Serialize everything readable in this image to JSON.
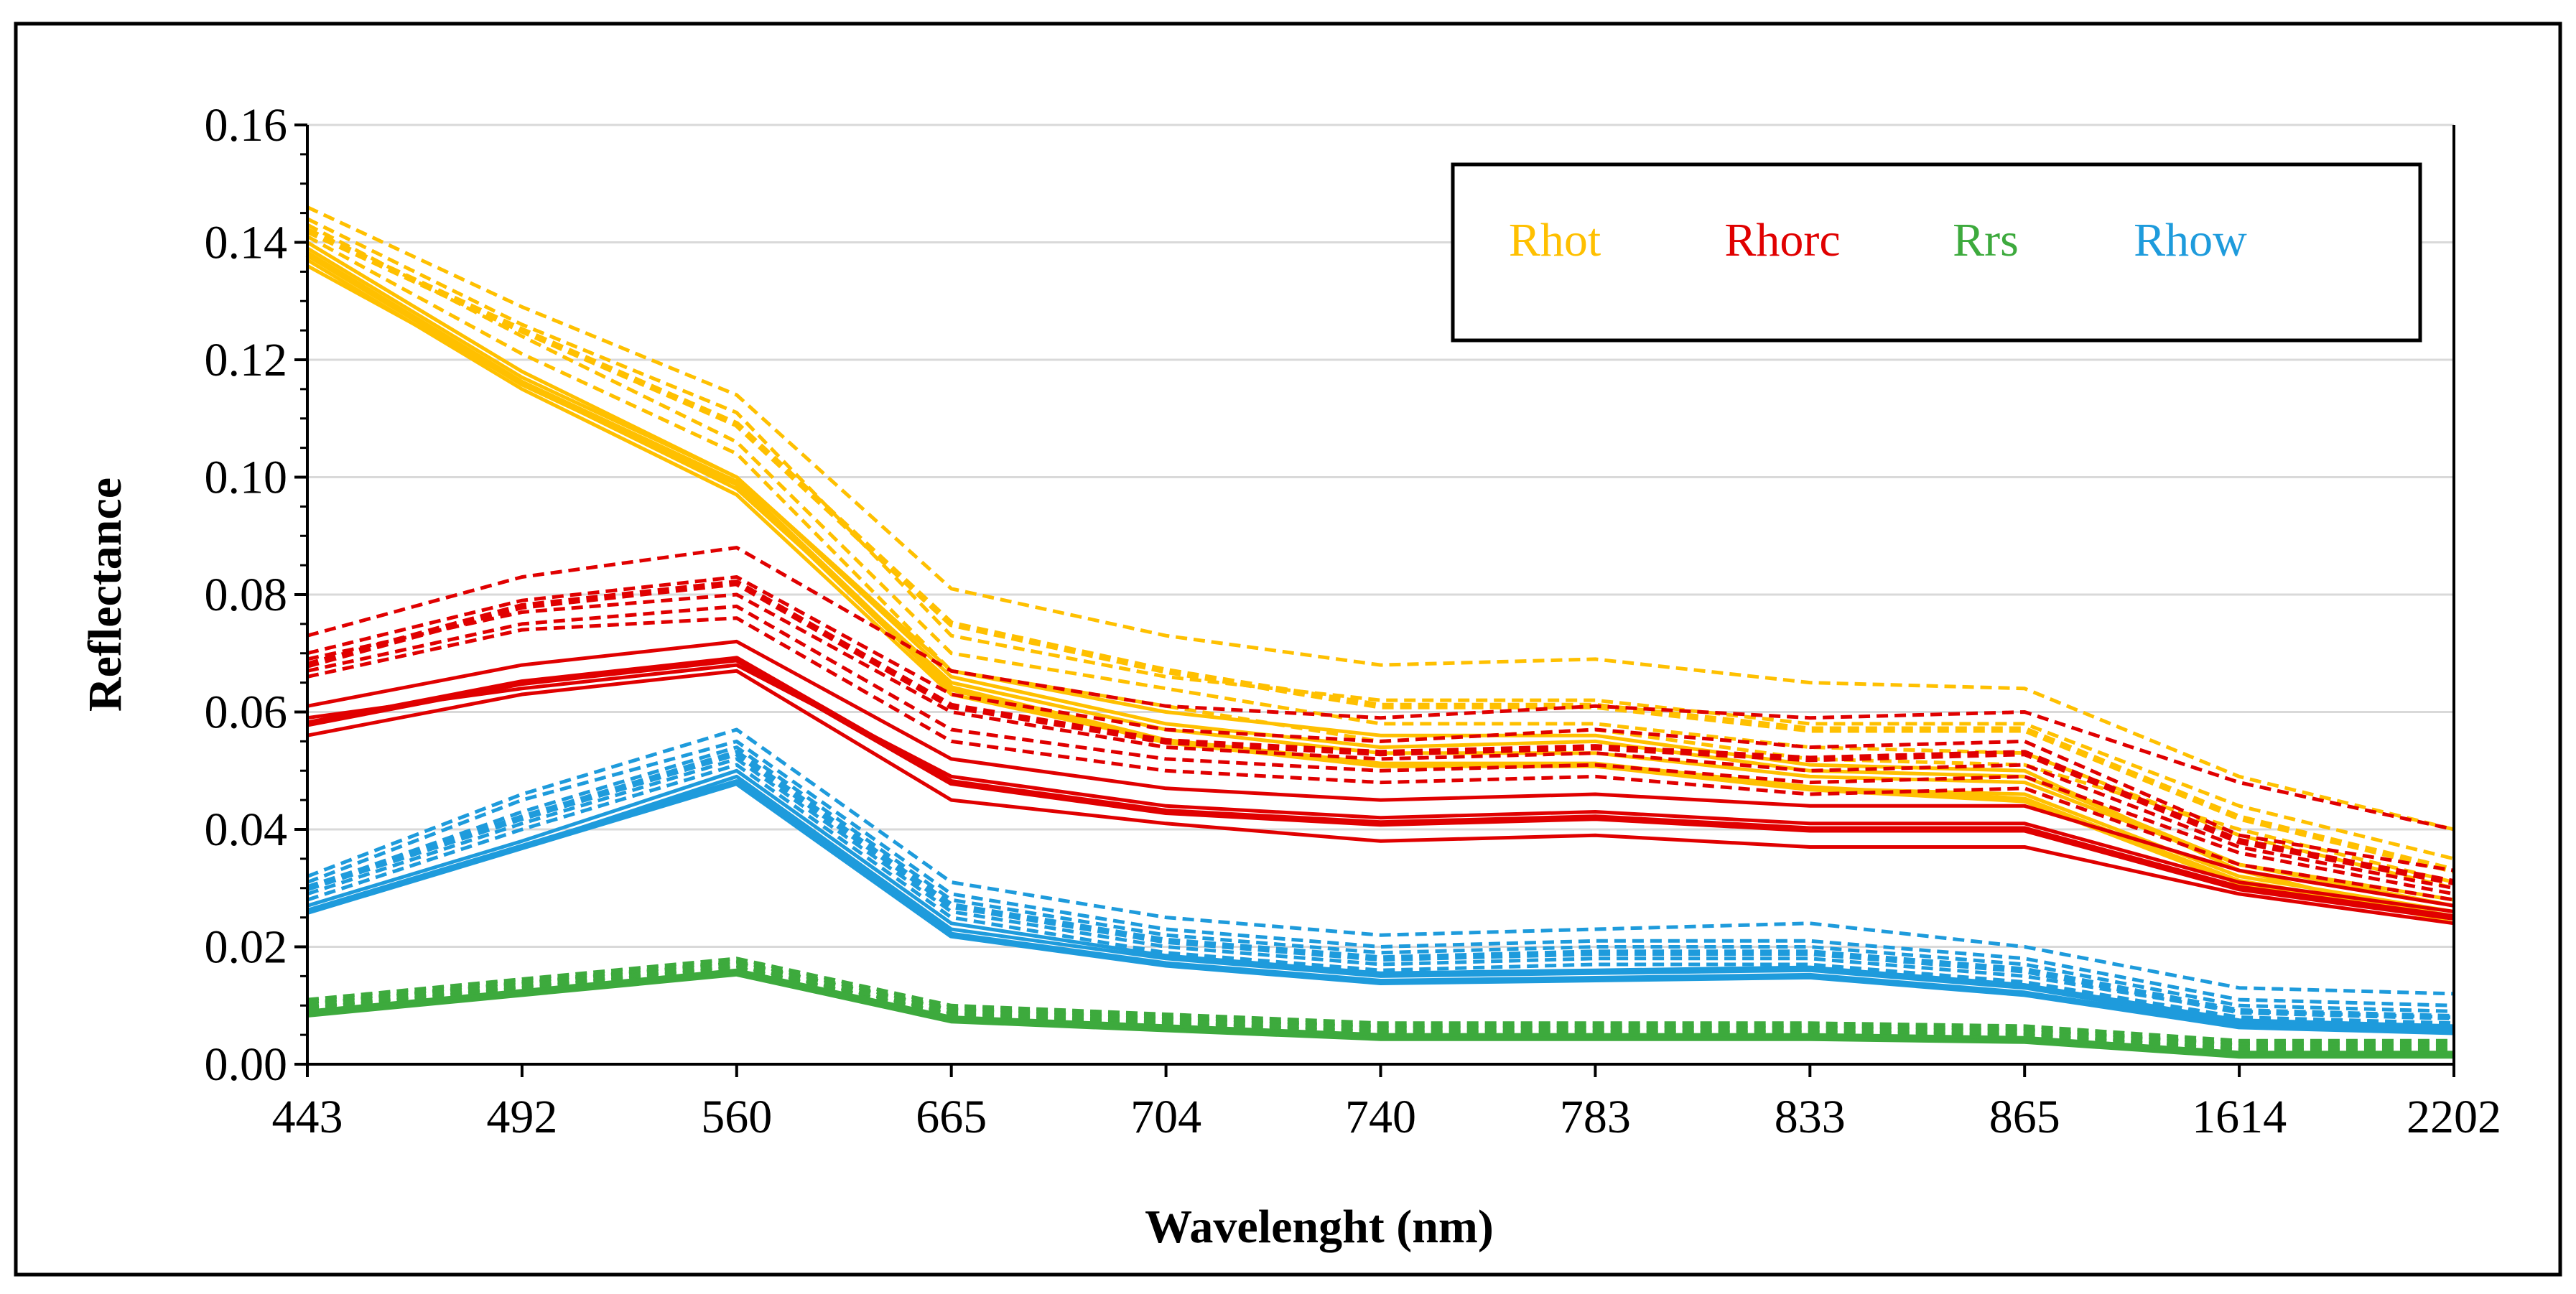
{
  "chart_data": {
    "type": "line",
    "xlabel": "Wavelenght (nm)",
    "ylabel": "Reflectance",
    "categories": [
      "443",
      "492",
      "560",
      "665",
      "704",
      "740",
      "783",
      "833",
      "865",
      "1614",
      "2202"
    ],
    "ylim": [
      0,
      0.16
    ],
    "yticks": [
      "0.00",
      "0.02",
      "0.04",
      "0.06",
      "0.08",
      "0.10",
      "0.12",
      "0.14",
      "0.16"
    ],
    "grid": "horizontal",
    "legend_position": "top-right",
    "legend": [
      {
        "label": "Rhot",
        "color": "#FFC000"
      },
      {
        "label": "Rhorc",
        "color": "#E00000"
      },
      {
        "label": "Rrs",
        "color": "#3DAA3D"
      },
      {
        "label": "Rhow",
        "color": "#1E9BDC"
      }
    ],
    "series": [
      {
        "group": "Rhot",
        "color": "#FFC000",
        "style": "solid",
        "width": 5,
        "values": [
          0.136,
          0.116,
          0.098,
          0.065,
          0.057,
          0.053,
          0.053,
          0.049,
          0.048,
          0.034,
          0.028
        ]
      },
      {
        "group": "Rhot",
        "color": "#FFC000",
        "style": "solid",
        "width": 5,
        "values": [
          0.137,
          0.115,
          0.097,
          0.063,
          0.055,
          0.051,
          0.051,
          0.047,
          0.046,
          0.032,
          0.026
        ]
      },
      {
        "group": "Rhot",
        "color": "#FFC000",
        "style": "solid",
        "width": 9,
        "values": [
          0.138,
          0.116,
          0.099,
          0.064,
          0.055,
          0.051,
          0.051,
          0.047,
          0.045,
          0.031,
          0.025
        ]
      },
      {
        "group": "Rhot",
        "color": "#FFC000",
        "style": "solid",
        "width": 5,
        "values": [
          0.139,
          0.117,
          0.1,
          0.066,
          0.058,
          0.054,
          0.055,
          0.05,
          0.049,
          0.034,
          0.027
        ]
      },
      {
        "group": "Rhot",
        "color": "#FFC000",
        "style": "solid",
        "width": 5,
        "values": [
          0.14,
          0.118,
          0.1,
          0.067,
          0.06,
          0.056,
          0.056,
          0.051,
          0.05,
          0.033,
          0.024
        ]
      },
      {
        "group": "Rhot",
        "color": "#FFC000",
        "style": "dashed",
        "width": 5,
        "values": [
          0.141,
          0.121,
          0.104,
          0.067,
          0.061,
          0.055,
          0.057,
          0.052,
          0.051,
          0.04,
          0.031
        ]
      },
      {
        "group": "Rhot",
        "color": "#FFC000",
        "style": "dashed",
        "width": 9,
        "values": [
          0.142,
          0.125,
          0.109,
          0.075,
          0.067,
          0.061,
          0.061,
          0.057,
          0.057,
          0.042,
          0.033
        ]
      },
      {
        "group": "Rhot",
        "color": "#FFC000",
        "style": "dashed",
        "width": 5,
        "values": [
          0.143,
          0.124,
          0.106,
          0.07,
          0.064,
          0.058,
          0.058,
          0.054,
          0.053,
          0.039,
          0.03
        ]
      },
      {
        "group": "Rhot",
        "color": "#FFC000",
        "style": "dashed",
        "width": 5,
        "values": [
          0.144,
          0.126,
          0.111,
          0.073,
          0.066,
          0.062,
          0.062,
          0.058,
          0.058,
          0.044,
          0.035
        ]
      },
      {
        "group": "Rhot",
        "color": "#FFC000",
        "style": "dashed",
        "width": 5,
        "values": [
          0.146,
          0.129,
          0.114,
          0.081,
          0.073,
          0.068,
          0.069,
          0.065,
          0.064,
          0.049,
          0.04
        ]
      },
      {
        "group": "Rhorc",
        "color": "#E00000",
        "style": "solid",
        "width": 5,
        "values": [
          0.056,
          0.063,
          0.067,
          0.045,
          0.041,
          0.038,
          0.039,
          0.037,
          0.037,
          0.029,
          0.024
        ]
      },
      {
        "group": "Rhorc",
        "color": "#E00000",
        "style": "solid",
        "width": 9,
        "values": [
          0.058,
          0.065,
          0.069,
          0.048,
          0.043,
          0.041,
          0.042,
          0.04,
          0.04,
          0.03,
          0.025
        ]
      },
      {
        "group": "Rhorc",
        "color": "#E00000",
        "style": "solid",
        "width": 5,
        "values": [
          0.059,
          0.064,
          0.068,
          0.049,
          0.044,
          0.042,
          0.043,
          0.041,
          0.041,
          0.031,
          0.026
        ]
      },
      {
        "group": "Rhorc",
        "color": "#E00000",
        "style": "solid",
        "width": 5,
        "values": [
          0.061,
          0.068,
          0.072,
          0.052,
          0.047,
          0.045,
          0.046,
          0.044,
          0.044,
          0.033,
          0.027
        ]
      },
      {
        "group": "Rhorc",
        "color": "#E00000",
        "style": "dashed",
        "width": 5,
        "values": [
          0.066,
          0.074,
          0.076,
          0.055,
          0.05,
          0.048,
          0.049,
          0.046,
          0.047,
          0.034,
          0.028
        ]
      },
      {
        "group": "Rhorc",
        "color": "#E00000",
        "style": "dashed",
        "width": 5,
        "values": [
          0.067,
          0.075,
          0.078,
          0.057,
          0.052,
          0.05,
          0.051,
          0.048,
          0.049,
          0.036,
          0.029
        ]
      },
      {
        "group": "Rhorc",
        "color": "#E00000",
        "style": "dashed",
        "width": 5,
        "values": [
          0.069,
          0.077,
          0.08,
          0.06,
          0.054,
          0.052,
          0.053,
          0.05,
          0.051,
          0.037,
          0.03
        ]
      },
      {
        "group": "Rhorc",
        "color": "#E00000",
        "style": "dashed",
        "width": 9,
        "values": [
          0.068,
          0.078,
          0.082,
          0.061,
          0.055,
          0.053,
          0.054,
          0.052,
          0.053,
          0.038,
          0.031
        ]
      },
      {
        "group": "Rhorc",
        "color": "#E00000",
        "style": "dashed",
        "width": 5,
        "values": [
          0.07,
          0.079,
          0.083,
          0.063,
          0.057,
          0.055,
          0.057,
          0.054,
          0.055,
          0.039,
          0.033
        ]
      },
      {
        "group": "Rhorc",
        "color": "#E00000",
        "style": "dashed",
        "width": 5,
        "values": [
          0.073,
          0.083,
          0.088,
          0.067,
          0.061,
          0.059,
          0.061,
          0.059,
          0.06,
          0.048,
          0.04
        ]
      },
      {
        "group": "Rrs",
        "color": "#3DAA3D",
        "style": "solid",
        "width": 9,
        "values": [
          0.0085,
          0.012,
          0.0155,
          0.0075,
          0.006,
          0.0045,
          0.0045,
          0.0045,
          0.004,
          0.0015,
          0.0015
        ]
      },
      {
        "group": "Rrs",
        "color": "#3DAA3D",
        "style": "solid",
        "width": 5,
        "values": [
          0.009,
          0.0125,
          0.016,
          0.008,
          0.0065,
          0.005,
          0.005,
          0.005,
          0.0045,
          0.002,
          0.002
        ]
      },
      {
        "group": "Rrs",
        "color": "#3DAA3D",
        "style": "dashed",
        "width": 5,
        "values": [
          0.0095,
          0.013,
          0.0165,
          0.0085,
          0.007,
          0.0055,
          0.0055,
          0.0055,
          0.005,
          0.0025,
          0.0025
        ]
      },
      {
        "group": "Rrs",
        "color": "#3DAA3D",
        "style": "dashed",
        "width": 9,
        "values": [
          0.01,
          0.0135,
          0.017,
          0.009,
          0.0075,
          0.006,
          0.006,
          0.006,
          0.0055,
          0.003,
          0.003
        ]
      },
      {
        "group": "Rrs",
        "color": "#3DAA3D",
        "style": "dashed",
        "width": 5,
        "values": [
          0.0105,
          0.014,
          0.0175,
          0.0095,
          0.008,
          0.0065,
          0.0065,
          0.0065,
          0.006,
          0.0035,
          0.0035
        ]
      },
      {
        "group": "Rrs",
        "color": "#3DAA3D",
        "style": "dashed",
        "width": 5,
        "values": [
          0.011,
          0.0145,
          0.018,
          0.01,
          0.0085,
          0.007,
          0.007,
          0.007,
          0.0065,
          0.004,
          0.004
        ]
      },
      {
        "group": "Rhow",
        "color": "#1E9BDC",
        "style": "solid",
        "width": 9,
        "values": [
          0.026,
          0.037,
          0.048,
          0.022,
          0.017,
          0.014,
          0.0145,
          0.015,
          0.012,
          0.0065,
          0.0055
        ]
      },
      {
        "group": "Rhow",
        "color": "#1E9BDC",
        "style": "solid",
        "width": 5,
        "values": [
          0.026,
          0.037,
          0.049,
          0.023,
          0.018,
          0.015,
          0.0155,
          0.016,
          0.013,
          0.007,
          0.006
        ]
      },
      {
        "group": "Rhow",
        "color": "#1E9BDC",
        "style": "solid",
        "width": 5,
        "values": [
          0.027,
          0.038,
          0.05,
          0.024,
          0.0185,
          0.0155,
          0.016,
          0.0165,
          0.0135,
          0.0075,
          0.0065
        ]
      },
      {
        "group": "Rhow",
        "color": "#1E9BDC",
        "style": "dashed",
        "width": 5,
        "values": [
          0.028,
          0.04,
          0.051,
          0.025,
          0.019,
          0.016,
          0.017,
          0.017,
          0.014,
          0.008,
          0.007
        ]
      },
      {
        "group": "Rhow",
        "color": "#1E9BDC",
        "style": "dashed",
        "width": 5,
        "values": [
          0.029,
          0.041,
          0.052,
          0.026,
          0.02,
          0.017,
          0.018,
          0.018,
          0.015,
          0.009,
          0.008
        ]
      },
      {
        "group": "Rhow",
        "color": "#1E9BDC",
        "style": "dashed",
        "width": 9,
        "values": [
          0.03,
          0.042,
          0.053,
          0.027,
          0.021,
          0.018,
          0.019,
          0.019,
          0.016,
          0.009,
          0.008
        ]
      },
      {
        "group": "Rhow",
        "color": "#1E9BDC",
        "style": "dashed",
        "width": 5,
        "values": [
          0.03,
          0.043,
          0.054,
          0.028,
          0.022,
          0.019,
          0.02,
          0.02,
          0.017,
          0.01,
          0.009
        ]
      },
      {
        "group": "Rhow",
        "color": "#1E9BDC",
        "style": "dashed",
        "width": 5,
        "values": [
          0.031,
          0.045,
          0.055,
          0.029,
          0.023,
          0.02,
          0.021,
          0.021,
          0.018,
          0.011,
          0.01
        ]
      },
      {
        "group": "Rhow",
        "color": "#1E9BDC",
        "style": "dashed",
        "width": 5,
        "values": [
          0.032,
          0.046,
          0.057,
          0.031,
          0.025,
          0.022,
          0.023,
          0.024,
          0.02,
          0.013,
          0.012
        ]
      }
    ]
  }
}
